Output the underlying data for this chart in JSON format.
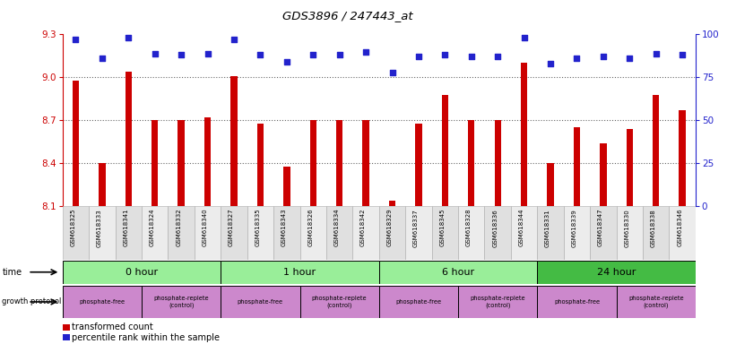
{
  "title": "GDS3896 / 247443_at",
  "samples": [
    "GSM618325",
    "GSM618333",
    "GSM618341",
    "GSM618324",
    "GSM618332",
    "GSM618340",
    "GSM618327",
    "GSM618335",
    "GSM618343",
    "GSM618326",
    "GSM618334",
    "GSM618342",
    "GSM618329",
    "GSM618337",
    "GSM618345",
    "GSM618328",
    "GSM618336",
    "GSM618344",
    "GSM618331",
    "GSM618339",
    "GSM618347",
    "GSM618330",
    "GSM618338",
    "GSM618346"
  ],
  "bar_values": [
    8.98,
    8.4,
    9.04,
    8.7,
    8.7,
    8.72,
    9.01,
    8.68,
    8.38,
    8.7,
    8.7,
    8.7,
    8.14,
    8.68,
    8.88,
    8.7,
    8.7,
    9.1,
    8.4,
    8.65,
    8.54,
    8.64,
    8.88,
    8.77
  ],
  "percentile_values": [
    97,
    86,
    98,
    89,
    88,
    89,
    97,
    88,
    84,
    88,
    88,
    90,
    78,
    87,
    88,
    87,
    87,
    98,
    83,
    86,
    87,
    86,
    89,
    88
  ],
  "ymin": 8.1,
  "ymax": 9.3,
  "yticks": [
    8.1,
    8.4,
    8.7,
    9.0,
    9.3
  ],
  "y2min": 0,
  "y2max": 100,
  "y2ticks": [
    0,
    25,
    50,
    75,
    100
  ],
  "bar_color": "#cc0000",
  "dot_color": "#2222cc",
  "axis_color_left": "#cc0000",
  "axis_color_right": "#2222cc",
  "bg_color": "#ffffff",
  "grid_color": "#666666",
  "time_labels": [
    "0 hour",
    "1 hour",
    "6 hour",
    "24 hour"
  ],
  "time_boundaries": [
    0,
    6,
    12,
    18,
    24
  ],
  "time_colors": [
    "#99ee99",
    "#99ee99",
    "#99ee99",
    "#44bb44"
  ],
  "proto_labels": [
    "phosphate-free",
    "phosphate-replete\n(control)",
    "phosphate-free",
    "phosphate-replete\n(control)",
    "phosphate-free",
    "phosphate-replete\n(control)",
    "phosphate-free",
    "phosphate-replete\n(control)"
  ],
  "proto_boundaries": [
    0,
    3,
    6,
    9,
    12,
    15,
    18,
    21,
    24
  ],
  "proto_color": "#cc88cc"
}
